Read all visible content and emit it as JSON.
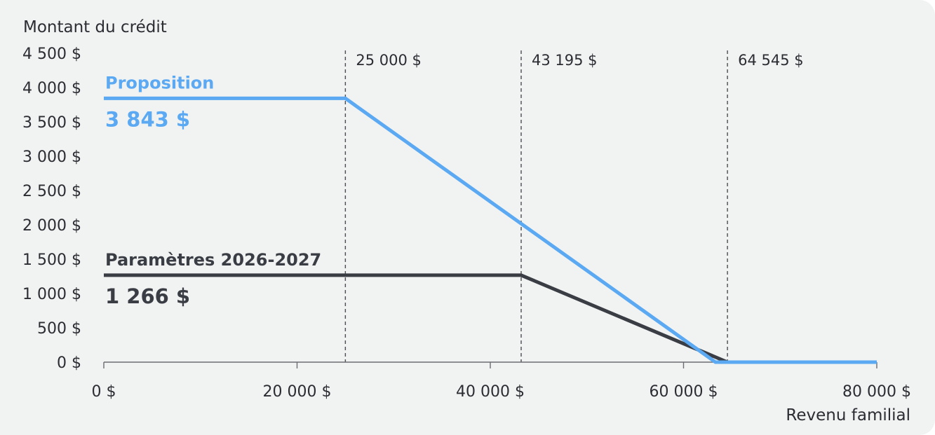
{
  "chart_data": {
    "type": "line",
    "ylabel": "Montant du crédit",
    "xlabel": "Revenu familial",
    "xlim": [
      0,
      80000
    ],
    "ylim": [
      0,
      4500
    ],
    "x_ticks": [
      0,
      20000,
      40000,
      60000,
      80000
    ],
    "x_tick_labels": [
      "0 $",
      "20 000 $",
      "40 000 $",
      "60 000 $",
      "80 000 $"
    ],
    "y_ticks": [
      0,
      500,
      1000,
      1500,
      2000,
      2500,
      3000,
      3500,
      4000,
      4500
    ],
    "y_tick_labels": [
      "0 $",
      "500 $",
      "1 000 $",
      "1 500 $",
      "2 000 $",
      "2 500 $",
      "3 000 $",
      "3 500 $",
      "4 000 $",
      "4 500 $"
    ],
    "reference_lines": [
      {
        "x": 25000,
        "label": "25 000 $"
      },
      {
        "x": 43195,
        "label": "43 195 $"
      },
      {
        "x": 64545,
        "label": "64 545 $"
      }
    ],
    "series": [
      {
        "name": "Proposition",
        "value_label": "3 843 $",
        "color": "#5aa9f2",
        "points": [
          [
            0,
            3843
          ],
          [
            25000,
            3843
          ],
          [
            63300,
            0
          ],
          [
            80000,
            0
          ]
        ]
      },
      {
        "name": "Paramètres 2026-2027",
        "value_label": "1 266 $",
        "color": "#3a3d44",
        "points": [
          [
            0,
            1266
          ],
          [
            43195,
            1266
          ],
          [
            64545,
            0
          ]
        ]
      }
    ],
    "grid": false,
    "legend": "inline labels"
  }
}
